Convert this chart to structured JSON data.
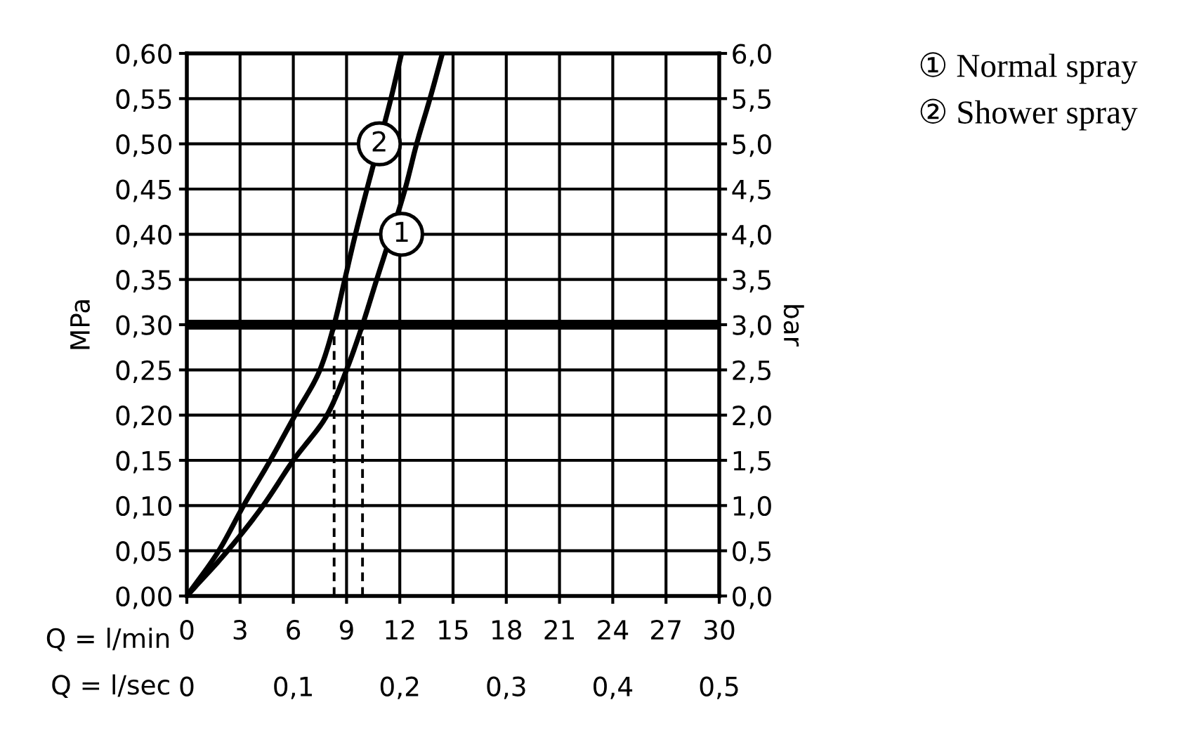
{
  "chart_data": {
    "type": "line",
    "xlabel": "Q = l/min",
    "x2label": "Q = l/sec",
    "ylabel": "MPa",
    "y2label": "bar",
    "xlim": [
      0,
      30
    ],
    "xticks": [
      0,
      3,
      6,
      9,
      12,
      15,
      18,
      21,
      24,
      27,
      30
    ],
    "x2lim": [
      0,
      0.5
    ],
    "x2ticks": [
      0,
      {
        "value": 0.1,
        "label": "0,1"
      },
      {
        "value": 0.2,
        "label": "0,2"
      },
      {
        "value": 0.3,
        "label": "0,3"
      },
      {
        "value": 0.4,
        "label": "0,4"
      },
      {
        "value": 0.5,
        "label": "0,5"
      }
    ],
    "ylim": [
      0,
      0.6
    ],
    "yticks": [
      {
        "value": 0,
        "label": "0,00"
      },
      {
        "value": 0.05,
        "label": "0,05"
      },
      {
        "value": 0.1,
        "label": "0,10"
      },
      {
        "value": 0.15,
        "label": "0,15"
      },
      {
        "value": 0.2,
        "label": "0,20"
      },
      {
        "value": 0.25,
        "label": "0,25"
      },
      {
        "value": 0.3,
        "label": "0,30"
      },
      {
        "value": 0.35,
        "label": "0,35"
      },
      {
        "value": 0.4,
        "label": "0,40"
      },
      {
        "value": 0.45,
        "label": "0,45"
      },
      {
        "value": 0.5,
        "label": "0,50"
      },
      {
        "value": 0.55,
        "label": "0,55"
      },
      {
        "value": 0.6,
        "label": "0,60"
      }
    ],
    "y2lim": [
      0,
      6
    ],
    "y2ticks": [
      {
        "value": 0,
        "label": "0,0"
      },
      {
        "value": 0.5,
        "label": "0,5"
      },
      {
        "value": 1,
        "label": "1,0"
      },
      {
        "value": 1.5,
        "label": "1,5"
      },
      {
        "value": 2,
        "label": "2,0"
      },
      {
        "value": 2.5,
        "label": "2,5"
      },
      {
        "value": 3,
        "label": "3,0"
      },
      {
        "value": 3.5,
        "label": "3,5"
      },
      {
        "value": 4,
        "label": "4,0"
      },
      {
        "value": 4.5,
        "label": "4,5"
      },
      {
        "value": 5,
        "label": "5,0"
      },
      {
        "value": 5.5,
        "label": "5,5"
      },
      {
        "value": 6,
        "label": "6,0"
      }
    ],
    "grid": true,
    "legend": "top right",
    "series": [
      {
        "name": "① Normal spray",
        "color": "#000000",
        "x": [
          0,
          2.3,
          4.3,
          6.0,
          7.9,
          9.0,
          9.9,
          10.7,
          12.3,
          12.95,
          13.7,
          14.4
        ],
        "values": [
          0,
          0.05,
          0.1,
          0.15,
          0.2,
          0.25,
          0.3,
          0.35,
          0.45,
          0.5,
          0.55,
          0.6
        ]
      },
      {
        "name": "② Shower spray",
        "color": "#000000",
        "x": [
          0,
          1.8,
          3.2,
          4.7,
          6.1,
          7.5,
          8.3,
          8.9,
          9.5,
          10.15,
          11.5,
          12.1
        ],
        "values": [
          0,
          0.05,
          0.1,
          0.15,
          0.2,
          0.25,
          0.3,
          0.35,
          0.4,
          0.45,
          0.55,
          0.6
        ]
      },
      {
        "color": "#000000",
        "line_style": "dashed",
        "x": [
          8.3,
          8.3
        ],
        "values": [
          0,
          0.3
        ]
      },
      {
        "color": "#000000",
        "line_style": "dashed",
        "x": [
          9.9,
          9.9
        ],
        "values": [
          0,
          0.3
        ]
      }
    ],
    "ref_lines": [
      {
        "axis": "y",
        "value": 0.3,
        "color": "#000000"
      }
    ],
    "annotations": [
      {
        "text": "1",
        "x": 12.1,
        "y": 0.4
      },
      {
        "text": "2",
        "x": 10.85,
        "y": 0.5
      }
    ]
  }
}
